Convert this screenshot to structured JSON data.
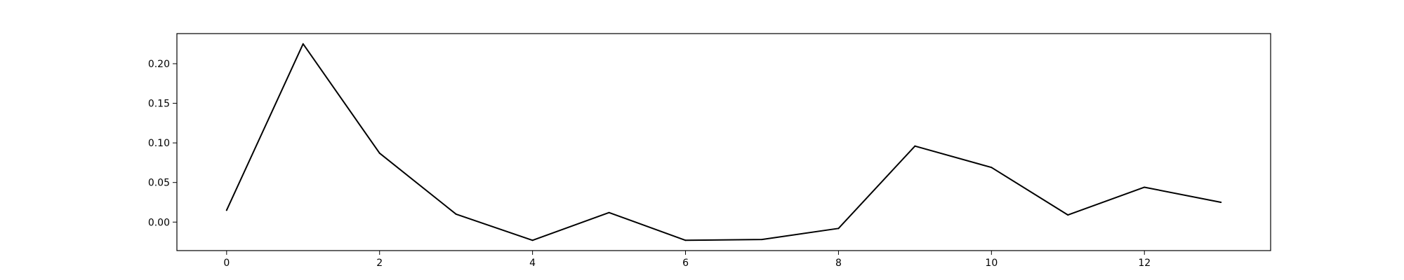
{
  "chart_data": {
    "type": "line",
    "title": "",
    "xlabel": "",
    "ylabel": "",
    "xlim": [
      -0.65,
      13.65
    ],
    "ylim": [
      -0.036,
      0.238
    ],
    "xticks": [
      0,
      2,
      4,
      6,
      8,
      10,
      12
    ],
    "xtick_labels": [
      "0",
      "2",
      "4",
      "6",
      "8",
      "10",
      "12"
    ],
    "yticks": [
      0.0,
      0.05,
      0.1,
      0.15,
      0.2
    ],
    "ytick_labels": [
      "0.00",
      "0.05",
      "0.10",
      "0.15",
      "0.20"
    ],
    "grid": false,
    "legend": "none",
    "series": [
      {
        "color": "#000000",
        "x": [
          0,
          1,
          2,
          3,
          4,
          5,
          6,
          7,
          8,
          9,
          10,
          11,
          12,
          13
        ],
        "y": [
          0.015,
          0.225,
          0.087,
          0.01,
          -0.023,
          0.012,
          -0.023,
          -0.022,
          -0.008,
          0.096,
          0.069,
          0.009,
          0.044,
          0.025
        ]
      }
    ]
  }
}
